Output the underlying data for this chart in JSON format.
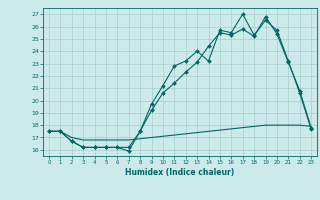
{
  "xlabel": "Humidex (Indice chaleur)",
  "bg_color": "#cceaea",
  "grid_color": "#aacccc",
  "line_color": "#006666",
  "xlim": [
    -0.5,
    23.5
  ],
  "ylim": [
    15.5,
    27.5
  ],
  "yticks": [
    16,
    17,
    18,
    19,
    20,
    21,
    22,
    23,
    24,
    25,
    26,
    27
  ],
  "xticks": [
    0,
    1,
    2,
    3,
    4,
    5,
    6,
    7,
    8,
    9,
    10,
    11,
    12,
    13,
    14,
    15,
    16,
    17,
    18,
    19,
    20,
    21,
    22,
    23
  ],
  "line1_x": [
    0,
    1,
    2,
    3,
    4,
    5,
    6,
    7,
    8,
    9,
    10,
    11,
    12,
    13,
    14,
    15,
    16,
    17,
    18,
    19,
    20,
    21,
    22,
    23
  ],
  "line1_y": [
    17.5,
    17.5,
    16.7,
    16.2,
    16.2,
    16.2,
    16.2,
    15.9,
    17.5,
    19.7,
    21.2,
    22.8,
    23.2,
    24.0,
    23.2,
    25.7,
    25.5,
    27.0,
    25.3,
    26.5,
    25.7,
    23.2,
    20.6,
    17.7
  ],
  "line2_x": [
    0,
    1,
    2,
    3,
    4,
    5,
    6,
    7,
    8,
    9,
    10,
    11,
    12,
    13,
    14,
    15,
    16,
    17,
    18,
    19,
    20,
    21,
    22,
    23
  ],
  "line2_y": [
    17.5,
    17.5,
    16.7,
    16.2,
    16.2,
    16.2,
    16.2,
    16.2,
    17.5,
    19.2,
    20.6,
    21.4,
    22.3,
    23.1,
    24.4,
    25.5,
    25.3,
    25.8,
    25.2,
    26.8,
    25.4,
    23.1,
    20.8,
    17.8
  ],
  "line3_x": [
    0,
    1,
    2,
    3,
    4,
    5,
    6,
    7,
    8,
    9,
    10,
    11,
    12,
    13,
    14,
    15,
    16,
    17,
    18,
    19,
    20,
    21,
    22,
    23
  ],
  "line3_y": [
    17.5,
    17.5,
    17.0,
    16.8,
    16.8,
    16.8,
    16.8,
    16.8,
    16.9,
    17.0,
    17.1,
    17.2,
    17.3,
    17.4,
    17.5,
    17.6,
    17.7,
    17.8,
    17.9,
    18.0,
    18.0,
    18.0,
    18.0,
    17.9
  ]
}
